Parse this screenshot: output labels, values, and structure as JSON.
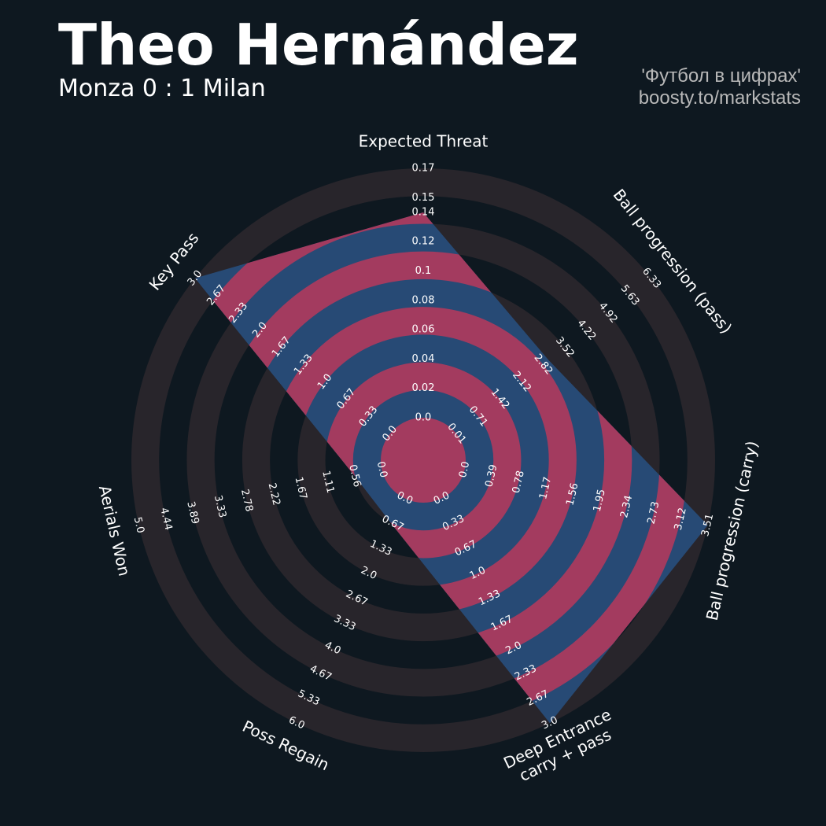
{
  "chart_data": {
    "type": "radar",
    "title": "Theo Hernández",
    "subtitle": "Monza 0 : 1 Milan",
    "credits": [
      "'Футбол в цифрах'",
      "boosty.to/markstats"
    ],
    "categories": [
      "Expected Threat",
      "Ball progression (pass)",
      "Ball progression (carry)",
      "Deep Entrance\ncarry + pass",
      "Poss Regain",
      "Aerials Won",
      "Key Pass"
    ],
    "values": [
      0.14,
      3.0,
      3.51,
      3.0,
      0.7,
      0.56,
      3.0
    ],
    "ranges": [
      [
        0,
        0.17
      ],
      [
        0.01,
        6.33
      ],
      [
        0,
        3.51
      ],
      [
        0,
        3
      ],
      [
        0,
        6
      ],
      [
        0,
        5
      ],
      [
        0,
        3
      ]
    ],
    "ticks": [
      [
        {
          "value": 0,
          "label": "0.0"
        },
        0.02,
        0.04,
        0.06,
        0.08,
        0.1,
        0.12,
        0.14,
        0.15,
        0.17
      ],
      [
        0.01,
        0.71,
        1.42,
        2.12,
        2.82,
        3.52,
        4.22,
        4.92,
        5.63,
        6.33
      ],
      [
        {
          "value": 0,
          "label": "0.0"
        },
        0.39,
        0.78,
        1.17,
        1.56,
        1.95,
        2.34,
        2.73,
        3.12,
        3.51
      ],
      [
        {
          "value": 0,
          "label": "0.0"
        },
        0.33,
        0.67,
        {
          "value": 1,
          "label": "1.0"
        },
        1.33,
        1.67,
        {
          "value": 2,
          "label": "2.0"
        },
        2.33,
        2.67,
        {
          "value": 3,
          "label": "3.0"
        }
      ],
      [
        {
          "value": 0,
          "label": "0.0"
        },
        0.67,
        1.33,
        {
          "value": 2,
          "label": "2.0"
        },
        2.67,
        3.33,
        {
          "value": 4,
          "label": "4.0"
        },
        4.67,
        5.33,
        {
          "value": 6,
          "label": "6.0"
        }
      ],
      [
        {
          "value": 0,
          "label": "0.0"
        },
        0.56,
        1.11,
        1.67,
        2.22,
        2.78,
        3.33,
        3.89,
        4.44,
        {
          "value": 5,
          "label": "5.0"
        }
      ],
      [
        {
          "value": 0,
          "label": "0.0"
        },
        0.33,
        0.67,
        {
          "value": 1,
          "label": "1.0"
        },
        1.33,
        1.67,
        {
          "value": 2,
          "label": "2.0"
        },
        2.33,
        2.67,
        {
          "value": 3,
          "label": "3.0"
        }
      ]
    ],
    "fill_color": "#274a75",
    "ring_fill_color": "#a33b5f",
    "ring_color": "#28252b"
  }
}
